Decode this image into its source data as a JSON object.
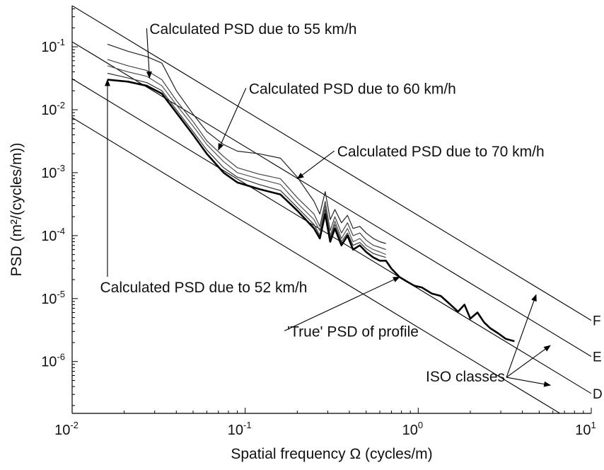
{
  "chart_data": {
    "type": "line",
    "title": "",
    "xlabel": "Spatial frequency Ω (cycles/m)",
    "ylabel": "PSD (m²/(cycles/m))",
    "xscale": "log",
    "yscale": "log",
    "xlim": [
      0.01,
      10
    ],
    "ylim": [
      1.5e-07,
      0.45
    ],
    "grid": false,
    "legend": "none",
    "x_ticks": [
      {
        "base": "10",
        "exp": "-2",
        "value": 0.01
      },
      {
        "base": "10",
        "exp": "-1",
        "value": 0.1
      },
      {
        "base": "10",
        "exp": "0",
        "value": 1
      },
      {
        "base": "10",
        "exp": "1",
        "value": 10
      }
    ],
    "y_ticks": [
      {
        "base": "10",
        "exp": "-1",
        "value": 0.1
      },
      {
        "base": "10",
        "exp": "-2",
        "value": 0.01
      },
      {
        "base": "10",
        "exp": "-3",
        "value": 0.001
      },
      {
        "base": "10",
        "exp": "-4",
        "value": 0.0001
      },
      {
        "base": "10",
        "exp": "-5",
        "value": 1e-05
      },
      {
        "base": "10",
        "exp": "-6",
        "value": 1e-06
      }
    ],
    "iso_lines": [
      {
        "class_label": "F",
        "points": [
          [
            0.01,
            0.45
          ],
          [
            10,
            4.5e-06
          ]
        ]
      },
      {
        "class_label": "E",
        "points": [
          [
            0.01,
            0.12
          ],
          [
            10,
            1.2e-06
          ]
        ]
      },
      {
        "class_label": "D",
        "points": [
          [
            0.01,
            0.031
          ],
          [
            10,
            3.1e-07
          ]
        ]
      },
      {
        "class_label": "",
        "points": [
          [
            0.01,
            0.0075
          ],
          [
            10,
            7.5e-08
          ]
        ]
      }
    ],
    "series": [
      {
        "color": "#222222",
        "points": [
          [
            0.016,
            0.11
          ],
          [
            0.021,
            0.085
          ],
          [
            0.027,
            0.07
          ],
          [
            0.033,
            0.055
          ],
          [
            0.04,
            0.02
          ],
          [
            0.05,
            0.0085
          ],
          [
            0.06,
            0.0045
          ],
          [
            0.075,
            0.0028
          ],
          [
            0.09,
            0.0022
          ],
          [
            0.12,
            0.002
          ],
          [
            0.16,
            0.0017
          ],
          [
            0.2,
            0.00085
          ],
          [
            0.25,
            0.00035
          ],
          [
            0.27,
            0.00022
          ],
          [
            0.29,
            0.0005
          ],
          [
            0.31,
            0.00018
          ],
          [
            0.33,
            0.00026
          ],
          [
            0.36,
            0.00016
          ],
          [
            0.39,
            0.00021
          ],
          [
            0.42,
            0.00013
          ],
          [
            0.46,
            0.00014
          ],
          [
            0.5,
            0.00011
          ],
          [
            0.55,
            9e-05
          ],
          [
            0.6,
            8e-05
          ],
          [
            0.65,
            7.5e-05
          ]
        ]
      },
      {
        "color": "#444444",
        "points": [
          [
            0.016,
            0.063
          ],
          [
            0.021,
            0.05
          ],
          [
            0.027,
            0.042
          ],
          [
            0.033,
            0.03
          ],
          [
            0.04,
            0.014
          ],
          [
            0.05,
            0.0065
          ],
          [
            0.06,
            0.0032
          ],
          [
            0.075,
            0.0018
          ],
          [
            0.09,
            0.0012
          ],
          [
            0.12,
            0.00095
          ],
          [
            0.16,
            0.0008
          ],
          [
            0.2,
            0.0004
          ],
          [
            0.25,
            0.00022
          ],
          [
            0.27,
            0.00014
          ],
          [
            0.29,
            0.00035
          ],
          [
            0.31,
            0.00012
          ],
          [
            0.33,
            0.0002
          ],
          [
            0.36,
            0.00011
          ],
          [
            0.39,
            0.00016
          ],
          [
            0.42,
            0.0001
          ],
          [
            0.46,
            0.00011
          ],
          [
            0.5,
            8.5e-05
          ],
          [
            0.55,
            7e-05
          ],
          [
            0.6,
            6.5e-05
          ],
          [
            0.65,
            6e-05
          ]
        ]
      },
      {
        "color": "#555555",
        "points": [
          [
            0.016,
            0.05
          ],
          [
            0.021,
            0.04
          ],
          [
            0.027,
            0.034
          ],
          [
            0.033,
            0.024
          ],
          [
            0.04,
            0.012
          ],
          [
            0.05,
            0.0055
          ],
          [
            0.06,
            0.0028
          ],
          [
            0.075,
            0.0015
          ],
          [
            0.09,
            0.001
          ],
          [
            0.12,
            0.0008
          ],
          [
            0.16,
            0.00065
          ],
          [
            0.2,
            0.00033
          ],
          [
            0.25,
            0.00018
          ],
          [
            0.27,
            0.00012
          ],
          [
            0.29,
            0.0003
          ],
          [
            0.31,
            0.0001
          ],
          [
            0.33,
            0.00017
          ],
          [
            0.36,
            9e-05
          ],
          [
            0.39,
            0.00013
          ],
          [
            0.42,
            8e-05
          ],
          [
            0.46,
            9e-05
          ],
          [
            0.5,
            7e-05
          ],
          [
            0.55,
            6e-05
          ],
          [
            0.6,
            5.5e-05
          ],
          [
            0.65,
            5e-05
          ]
        ]
      },
      {
        "color": "#333333",
        "points": [
          [
            0.016,
            0.038
          ],
          [
            0.021,
            0.032
          ],
          [
            0.027,
            0.027
          ],
          [
            0.033,
            0.02
          ],
          [
            0.04,
            0.01
          ],
          [
            0.05,
            0.0045
          ],
          [
            0.06,
            0.0023
          ],
          [
            0.075,
            0.0012
          ],
          [
            0.09,
            0.00085
          ],
          [
            0.12,
            0.00065
          ],
          [
            0.16,
            0.00052
          ],
          [
            0.2,
            0.00028
          ],
          [
            0.25,
            0.00015
          ],
          [
            0.27,
            0.0001
          ],
          [
            0.29,
            0.00026
          ],
          [
            0.31,
            9e-05
          ],
          [
            0.33,
            0.00015
          ],
          [
            0.36,
            8e-05
          ],
          [
            0.39,
            0.00011
          ],
          [
            0.42,
            7e-05
          ],
          [
            0.46,
            7.8e-05
          ],
          [
            0.5,
            6.2e-05
          ],
          [
            0.55,
            5.2e-05
          ],
          [
            0.6,
            4.8e-05
          ],
          [
            0.65,
            4.5e-05
          ]
        ]
      },
      {
        "color": "#000000",
        "points": [
          [
            0.016,
            0.03
          ],
          [
            0.021,
            0.028
          ],
          [
            0.027,
            0.024
          ],
          [
            0.033,
            0.018
          ],
          [
            0.04,
            0.009
          ],
          [
            0.05,
            0.004
          ],
          [
            0.06,
            0.002
          ],
          [
            0.075,
            0.001
          ],
          [
            0.09,
            0.0007
          ],
          [
            0.12,
            0.00055
          ],
          [
            0.16,
            0.00045
          ],
          [
            0.2,
            0.00025
          ],
          [
            0.25,
            0.00013
          ],
          [
            0.27,
            9e-05
          ],
          [
            0.29,
            0.00022
          ],
          [
            0.31,
            8e-05
          ],
          [
            0.33,
            0.00013
          ],
          [
            0.36,
            7e-05
          ],
          [
            0.39,
            0.0001
          ],
          [
            0.42,
            6e-05
          ],
          [
            0.46,
            7e-05
          ],
          [
            0.5,
            5.5e-05
          ],
          [
            0.55,
            4.5e-05
          ],
          [
            0.6,
            4e-05
          ],
          [
            0.65,
            4e-05
          ],
          [
            0.7,
            3e-05
          ],
          [
            0.78,
            2.2e-05
          ],
          [
            0.85,
            1.9e-05
          ],
          [
            0.95,
            1.6e-05
          ],
          [
            1.05,
            1.5e-05
          ],
          [
            1.2,
            1.2e-05
          ],
          [
            1.35,
            1.1e-05
          ],
          [
            1.5,
            8.5e-06
          ],
          [
            1.7,
            6.2e-06
          ],
          [
            1.85,
            8e-06
          ],
          [
            2.0,
            4.8e-06
          ],
          [
            2.2,
            6e-06
          ],
          [
            2.4,
            4.2e-06
          ],
          [
            2.6,
            3.4e-06
          ],
          [
            2.9,
            2.8e-06
          ],
          [
            3.2,
            2.3e-06
          ],
          [
            3.6,
            2.1e-06
          ]
        ]
      }
    ],
    "annotations": [
      {
        "text": "Calculated PSD due to 55 km/h",
        "xy": [
          0.028,
          0.032
        ],
        "xytext": [
          0.028,
          0.16
        ],
        "text_anchor": "start"
      },
      {
        "text": "Calculated PSD due to 60 km/h",
        "xy": [
          0.07,
          0.0023
        ],
        "xytext": [
          0.105,
          0.018
        ],
        "text_anchor": "start"
      },
      {
        "text": "Calculated PSD due to 70 km/h",
        "xy": [
          0.2,
          0.0008
        ],
        "xytext": [
          0.34,
          0.0018
        ],
        "text_anchor": "start"
      },
      {
        "text": "Calculated PSD due to 52 km/h",
        "xy": [
          0.016,
          0.03
        ],
        "xytext": [
          0.0145,
          1.25e-05
        ],
        "text_anchor": "start"
      },
      {
        "text": "'True' PSD of profile",
        "xy": [
          0.78,
          2.2e-05
        ],
        "xytext": [
          0.175,
          2.5e-06
        ],
        "text_anchor": "start"
      }
    ],
    "iso_annotation": {
      "text": "ISO classes",
      "origin": [
        3.0,
        4.8e-07
      ],
      "targets": [
        [
          4.8,
          1.15e-05
        ],
        [
          5.8,
          1.8e-06
        ],
        [
          5.8,
          4.2e-07
        ]
      ]
    }
  }
}
